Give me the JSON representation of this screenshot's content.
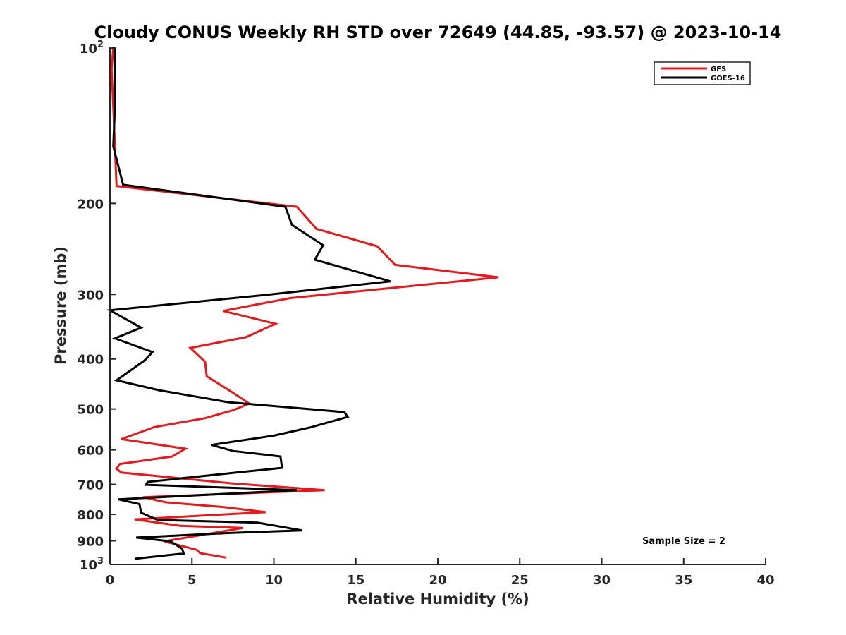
{
  "chart_data": {
    "type": "line",
    "title": "Cloudy CONUS Weekly RH STD over 72649 (44.85, -93.57) @ 2023-10-14",
    "xlabel": "Relative Humidity (%)",
    "ylabel": "Pressure (mb)",
    "xlim": [
      0,
      40
    ],
    "ylim": [
      1000,
      100
    ],
    "yscale": "log",
    "y_reversed": true,
    "x_ticks": [
      0,
      5,
      10,
      15,
      20,
      25,
      30,
      35,
      40
    ],
    "x_tick_labels": [
      "0",
      "5",
      "10",
      "15",
      "20",
      "25",
      "30",
      "35",
      "40"
    ],
    "y_ticks": [
      100,
      200,
      300,
      400,
      500,
      600,
      700,
      800,
      900,
      1000
    ],
    "y_tick_labels": [
      {
        "base": "10",
        "exp": "2"
      },
      {
        "base": "200",
        "exp": ""
      },
      {
        "base": "300",
        "exp": ""
      },
      {
        "base": "400",
        "exp": ""
      },
      {
        "base": "500",
        "exp": ""
      },
      {
        "base": "600",
        "exp": ""
      },
      {
        "base": "700",
        "exp": ""
      },
      {
        "base": "800",
        "exp": ""
      },
      {
        "base": "900",
        "exp": ""
      },
      {
        "base": "10",
        "exp": "3"
      }
    ],
    "grid": false,
    "legend_position": "top-right",
    "series": [
      {
        "name": "GFS",
        "color": "#e41a1c",
        "points": [
          [
            0.2,
            100
          ],
          [
            0.1,
            110
          ],
          [
            0.2,
            130
          ],
          [
            0.3,
            155
          ],
          [
            0.4,
            185
          ],
          [
            11.4,
            203
          ],
          [
            12.6,
            224
          ],
          [
            16.3,
            242
          ],
          [
            17.4,
            263
          ],
          [
            23.7,
            278
          ],
          [
            11.0,
            305
          ],
          [
            6.9,
            323
          ],
          [
            10.1,
            342
          ],
          [
            8.3,
            363
          ],
          [
            4.9,
            381
          ],
          [
            5.8,
            405
          ],
          [
            5.9,
            432
          ],
          [
            7.5,
            465
          ],
          [
            8.5,
            488
          ],
          [
            7.5,
            503
          ],
          [
            5.8,
            521
          ],
          [
            2.7,
            542
          ],
          [
            0.7,
            572
          ],
          [
            4.6,
            597
          ],
          [
            3.8,
            618
          ],
          [
            0.6,
            639
          ],
          [
            0.4,
            653
          ],
          [
            0.7,
            664
          ],
          [
            7.5,
            697
          ],
          [
            13.1,
            718
          ],
          [
            2.0,
            741
          ],
          [
            3.4,
            758
          ],
          [
            6.9,
            774
          ],
          [
            9.5,
            792
          ],
          [
            1.5,
            818
          ],
          [
            4.3,
            842
          ],
          [
            8.1,
            850
          ],
          [
            5.3,
            880
          ],
          [
            3.3,
            902
          ],
          [
            5.3,
            937
          ],
          [
            5.5,
            951
          ],
          [
            7.1,
            970
          ]
        ]
      },
      {
        "name": "GOES-16",
        "color": "#000000",
        "points": [
          [
            0.3,
            100
          ],
          [
            0.3,
            130
          ],
          [
            0.2,
            155
          ],
          [
            0.8,
            184
          ],
          [
            10.7,
            203
          ],
          [
            11.1,
            220
          ],
          [
            13.0,
            241
          ],
          [
            12.5,
            257
          ],
          [
            17.1,
            283
          ],
          [
            9.8,
            300
          ],
          [
            0.0,
            322
          ],
          [
            1.9,
            348
          ],
          [
            0.3,
            365
          ],
          [
            2.6,
            388
          ],
          [
            2.1,
            403
          ],
          [
            0.4,
            440
          ],
          [
            3.0,
            460
          ],
          [
            7.2,
            485
          ],
          [
            14.3,
            507
          ],
          [
            14.5,
            518
          ],
          [
            12.2,
            543
          ],
          [
            10.0,
            563
          ],
          [
            6.2,
            587
          ],
          [
            7.5,
            603
          ],
          [
            10.4,
            618
          ],
          [
            10.5,
            650
          ],
          [
            7.9,
            663
          ],
          [
            2.3,
            692
          ],
          [
            2.2,
            701
          ],
          [
            11.4,
            718
          ],
          [
            0.5,
            748
          ],
          [
            1.8,
            764
          ],
          [
            1.9,
            794
          ],
          [
            2.9,
            820
          ],
          [
            9.0,
            830
          ],
          [
            11.7,
            859
          ],
          [
            7.3,
            869
          ],
          [
            1.6,
            887
          ],
          [
            3.7,
            902
          ],
          [
            4.4,
            932
          ],
          [
            4.5,
            952
          ],
          [
            1.5,
            975
          ]
        ]
      }
    ],
    "annotation": "Sample Size = 2"
  }
}
